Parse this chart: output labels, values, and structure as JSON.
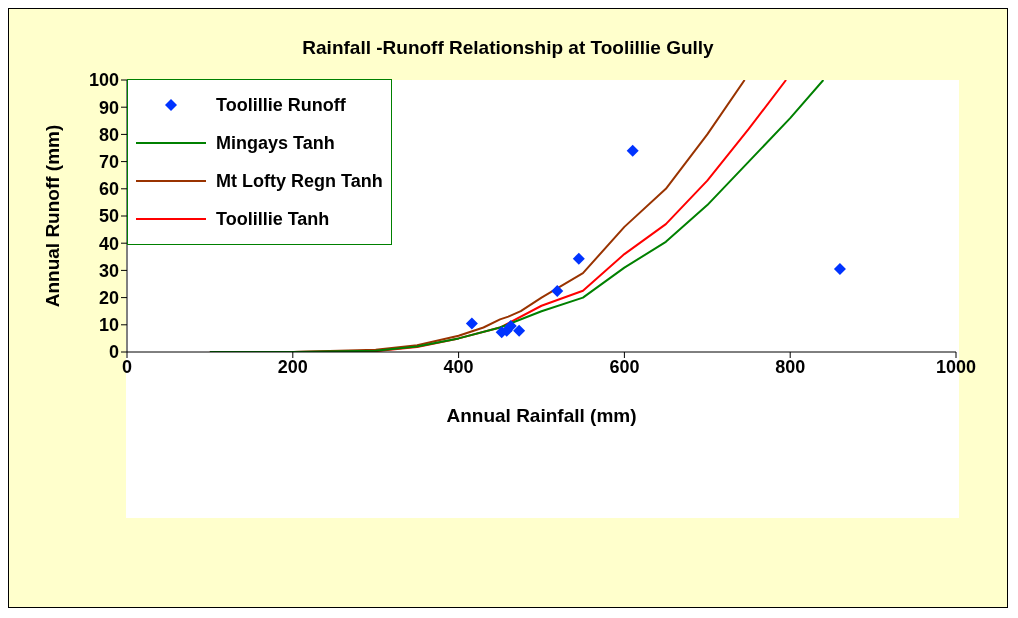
{
  "chart_data": {
    "type": "line",
    "title": "Rainfall -Runoff Relationship at Toolillie Gully",
    "xlabel": "Annual Rainfall (mm)",
    "ylabel": "Annual Runoff (mm)",
    "xlim": [
      0,
      1000
    ],
    "xticks": [
      0,
      200,
      400,
      600,
      800,
      1000
    ],
    "ylim": [
      0,
      100
    ],
    "yticks": [
      0,
      10,
      20,
      30,
      40,
      50,
      60,
      70,
      80,
      90,
      100
    ],
    "grid": false,
    "legend": "top left",
    "line_style": "solid",
    "series": [
      {
        "name": "Toolillie Runoff",
        "type": "scatter",
        "marker": "diamond",
        "color": "#0033ff",
        "x": [
          416,
          452,
          458,
          463,
          473,
          519,
          545,
          610,
          860
        ],
        "values": [
          10.5,
          7.3,
          7.8,
          9.6,
          7.8,
          22.4,
          34.3,
          74,
          30.5
        ]
      },
      {
        "name": "Mingays Tanh",
        "color": "#008000",
        "x": [
          100,
          200,
          300,
          350,
          400,
          450,
          500,
          550,
          600,
          650,
          700,
          750,
          800,
          840
        ],
        "values": [
          0,
          0,
          0.5,
          2,
          5,
          9,
          15,
          20,
          31,
          40.5,
          54,
          70,
          86,
          100
        ]
      },
      {
        "name": "Mt Lofty Regn Tanh",
        "color": "#993300",
        "x": [
          100,
          200,
          300,
          350,
          400,
          430,
          450,
          460,
          475,
          500,
          550,
          600,
          650,
          700,
          745
        ],
        "values": [
          0,
          0,
          0.8,
          2.5,
          6,
          9,
          12,
          13,
          15,
          20,
          29,
          46,
          60,
          80,
          100
        ]
      },
      {
        "name": "Toolillie Tanh",
        "color": "#ff0000",
        "x": [
          100,
          200,
          300,
          350,
          400,
          450,
          500,
          550,
          600,
          650,
          700,
          750,
          795
        ],
        "values": [
          0,
          0,
          0.3,
          1.8,
          5,
          9,
          17,
          22.5,
          36,
          47,
          63,
          82,
          100
        ]
      }
    ]
  }
}
